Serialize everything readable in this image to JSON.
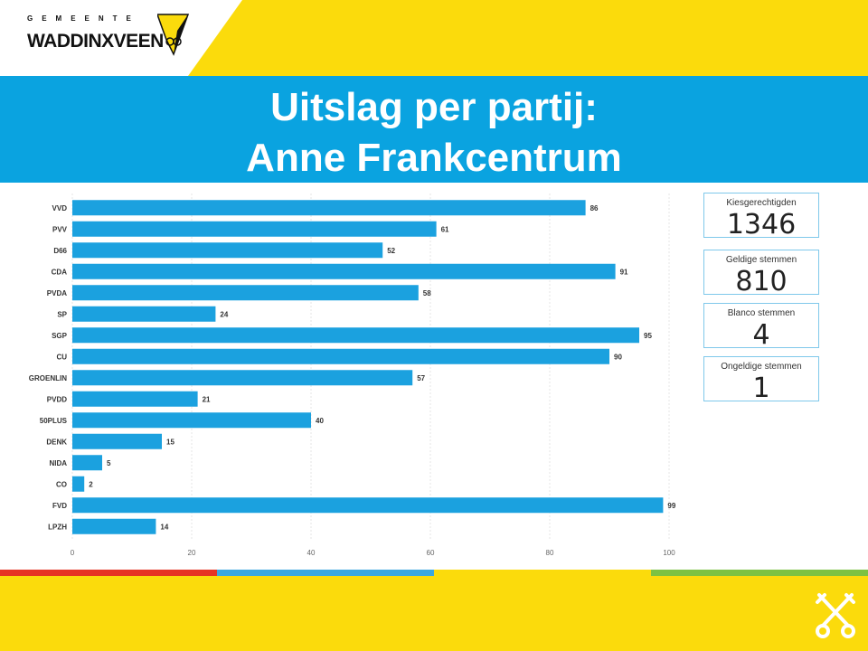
{
  "logo": {
    "top_text": "GEMEENTE",
    "name": "WADDINXVEEN"
  },
  "title": {
    "line1": "Uitslag per partij:",
    "line2": "Anne Frankcentrum"
  },
  "kpis": [
    {
      "label": "Kiesgerechtigden",
      "value": "1346"
    },
    {
      "label": "Geldige stemmen",
      "value": "810"
    },
    {
      "label": "Blanco stemmen",
      "value": "4"
    },
    {
      "label": "Ongeldige stemmen",
      "value": "1"
    }
  ],
  "colors": {
    "bar": "#1BA1DF",
    "band": "#0AA3E0",
    "yellow": "#FBDB0C",
    "stripe": [
      "#E63323",
      "#3BA7E0",
      "#FBDB0C",
      "#7CC242"
    ]
  },
  "chart_data": {
    "type": "bar",
    "orientation": "horizontal",
    "categories": [
      "VVD",
      "PVV",
      "D66",
      "CDA",
      "PVDA",
      "SP",
      "SGP",
      "CU",
      "GROENLIN",
      "PVDD",
      "50PLUS",
      "DENK",
      "NIDA",
      "CO",
      "FVD",
      "LPZH"
    ],
    "values": [
      86,
      61,
      52,
      91,
      58,
      24,
      95,
      90,
      57,
      21,
      40,
      15,
      5,
      2,
      99,
      14
    ],
    "xticks": [
      "0",
      "20",
      "40",
      "60",
      "80",
      "100"
    ],
    "xlim": [
      0,
      100
    ],
    "grid": true,
    "data_labels": true
  }
}
